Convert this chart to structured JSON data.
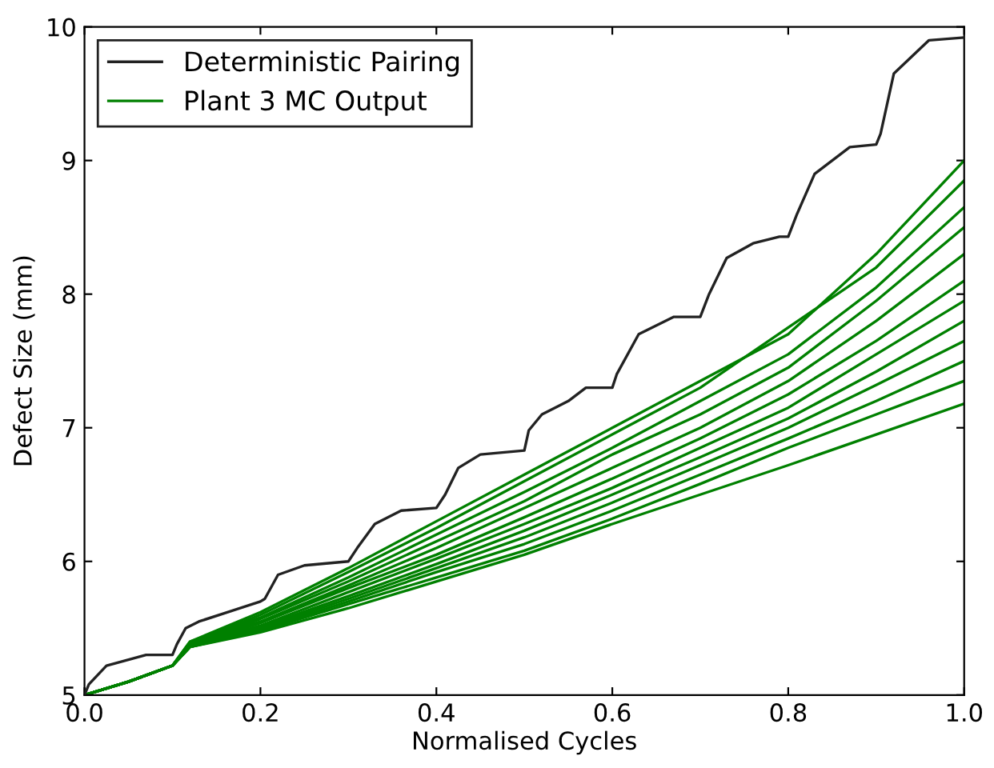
{
  "chart_data": {
    "type": "line",
    "xlabel": "Normalised Cycles",
    "ylabel": "Defect Size (mm)",
    "xlim": [
      0.0,
      1.0
    ],
    "ylim": [
      5,
      10
    ],
    "xticks": [
      {
        "value": 0,
        "label": "0.0"
      },
      0.2,
      0.4,
      0.6,
      0.8,
      {
        "value": 1,
        "label": "1.0"
      }
    ],
    "yticks": [
      5,
      6,
      7,
      8,
      9,
      10
    ],
    "grid": false,
    "legend": "top left",
    "marker": "none",
    "line_style": "solid",
    "series": [
      {
        "name": "Deterministic Pairing",
        "color": "#222222",
        "x": [
          0,
          0.005,
          0.025,
          0.07,
          0.1,
          0.105,
          0.115,
          0.13,
          0.2,
          0.205,
          0.22,
          0.25,
          0.3,
          0.31,
          0.33,
          0.36,
          0.4,
          0.41,
          0.425,
          0.45,
          0.5,
          0.505,
          0.52,
          0.55,
          0.57,
          0.6,
          0.605,
          0.63,
          0.67,
          0.7,
          0.71,
          0.73,
          0.76,
          0.79,
          0.8,
          0.81,
          0.83,
          0.87,
          0.9,
          0.905,
          0.92,
          0.96,
          1.0
        ],
        "values": [
          5.0,
          5.08,
          5.22,
          5.3,
          5.3,
          5.38,
          5.5,
          5.55,
          5.7,
          5.72,
          5.9,
          5.97,
          6.0,
          6.1,
          6.28,
          6.38,
          6.4,
          6.5,
          6.7,
          6.8,
          6.83,
          6.98,
          7.1,
          7.2,
          7.3,
          7.3,
          7.4,
          7.7,
          7.83,
          7.83,
          8.0,
          8.27,
          8.38,
          8.43,
          8.43,
          8.6,
          8.9,
          9.1,
          9.12,
          9.2,
          9.65,
          9.9,
          9.92
        ]
      },
      {
        "name": "Plant 3 MC Output",
        "color": "#008000",
        "x": [
          0,
          0.05,
          0.1,
          0.12,
          0.2,
          0.3,
          0.4,
          0.5,
          0.6,
          0.7,
          0.8,
          0.9,
          1.0
        ],
        "values": [
          5.0,
          5.1,
          5.22,
          5.4,
          5.62,
          5.95,
          6.3,
          6.65,
          7.0,
          7.35,
          7.7,
          8.3,
          9.0
        ]
      },
      {
        "color": "#008000",
        "x": [
          0,
          0.05,
          0.1,
          0.12,
          0.2,
          0.3,
          0.4,
          0.5,
          0.6,
          0.7,
          0.8,
          0.9,
          1.0
        ],
        "values": [
          5.0,
          5.1,
          5.22,
          5.39,
          5.6,
          5.92,
          6.25,
          6.6,
          6.95,
          7.3,
          7.75,
          8.2,
          8.85
        ]
      },
      {
        "color": "#008000",
        "x": [
          0,
          0.05,
          0.1,
          0.12,
          0.2,
          0.3,
          0.4,
          0.5,
          0.6,
          0.7,
          0.8,
          0.9,
          1.0
        ],
        "values": [
          5.0,
          5.1,
          5.22,
          5.4,
          5.58,
          5.88,
          6.2,
          6.52,
          6.85,
          7.2,
          7.55,
          8.05,
          8.65
        ]
      },
      {
        "color": "#008000",
        "x": [
          0,
          0.05,
          0.1,
          0.12,
          0.2,
          0.3,
          0.4,
          0.5,
          0.6,
          0.7,
          0.8,
          0.9,
          1.0
        ],
        "values": [
          5.0,
          5.1,
          5.22,
          5.38,
          5.57,
          5.85,
          6.15,
          6.45,
          6.8,
          7.1,
          7.45,
          7.95,
          8.5
        ]
      },
      {
        "color": "#008000",
        "x": [
          0,
          0.05,
          0.1,
          0.12,
          0.2,
          0.3,
          0.4,
          0.5,
          0.6,
          0.7,
          0.8,
          0.9,
          1.0
        ],
        "values": [
          5.0,
          5.1,
          5.22,
          5.38,
          5.55,
          5.82,
          6.1,
          6.4,
          6.7,
          7.0,
          7.35,
          7.8,
          8.3
        ]
      },
      {
        "color": "#008000",
        "x": [
          0,
          0.05,
          0.1,
          0.12,
          0.2,
          0.3,
          0.4,
          0.5,
          0.6,
          0.7,
          0.8,
          0.9,
          1.0
        ],
        "values": [
          5.0,
          5.1,
          5.22,
          5.37,
          5.54,
          5.8,
          6.05,
          6.33,
          6.62,
          6.92,
          7.25,
          7.65,
          8.1
        ]
      },
      {
        "color": "#008000",
        "x": [
          0,
          0.05,
          0.1,
          0.12,
          0.2,
          0.3,
          0.4,
          0.5,
          0.6,
          0.7,
          0.8,
          0.9,
          1.0
        ],
        "values": [
          5.0,
          5.1,
          5.22,
          5.37,
          5.52,
          5.77,
          6.02,
          6.28,
          6.55,
          6.85,
          7.15,
          7.55,
          7.95
        ]
      },
      {
        "color": "#008000",
        "x": [
          0,
          0.05,
          0.1,
          0.12,
          0.2,
          0.3,
          0.4,
          0.5,
          0.6,
          0.7,
          0.8,
          0.9,
          1.0
        ],
        "values": [
          5.0,
          5.1,
          5.22,
          5.37,
          5.51,
          5.74,
          5.98,
          6.23,
          6.5,
          6.78,
          7.07,
          7.42,
          7.8
        ]
      },
      {
        "color": "#008000",
        "x": [
          0,
          0.05,
          0.1,
          0.12,
          0.2,
          0.3,
          0.4,
          0.5,
          0.6,
          0.7,
          0.8,
          0.9,
          1.0
        ],
        "values": [
          5.0,
          5.1,
          5.22,
          5.36,
          5.5,
          5.72,
          5.95,
          6.18,
          6.44,
          6.72,
          7.0,
          7.32,
          7.65
        ]
      },
      {
        "color": "#008000",
        "x": [
          0,
          0.05,
          0.1,
          0.12,
          0.2,
          0.3,
          0.4,
          0.5,
          0.6,
          0.7,
          0.8,
          0.9,
          1.0
        ],
        "values": [
          5.0,
          5.1,
          5.22,
          5.36,
          5.49,
          5.7,
          5.92,
          6.13,
          6.38,
          6.65,
          6.92,
          7.2,
          7.5
        ]
      },
      {
        "color": "#008000",
        "x": [
          0,
          0.05,
          0.1,
          0.12,
          0.2,
          0.3,
          0.4,
          0.5,
          0.6,
          0.7,
          0.8,
          0.9,
          1.0
        ],
        "values": [
          5.0,
          5.1,
          5.22,
          5.36,
          5.48,
          5.68,
          5.88,
          6.08,
          6.32,
          6.58,
          6.85,
          7.1,
          7.35
        ]
      },
      {
        "color": "#008000",
        "x": [
          0,
          0.05,
          0.1,
          0.12,
          0.2,
          0.3,
          0.4,
          0.5,
          0.6,
          0.7,
          0.8,
          0.9,
          1.0
        ],
        "values": [
          5.0,
          5.1,
          5.22,
          5.36,
          5.47,
          5.65,
          5.85,
          6.05,
          6.28,
          6.5,
          6.72,
          6.95,
          7.18
        ]
      }
    ]
  }
}
